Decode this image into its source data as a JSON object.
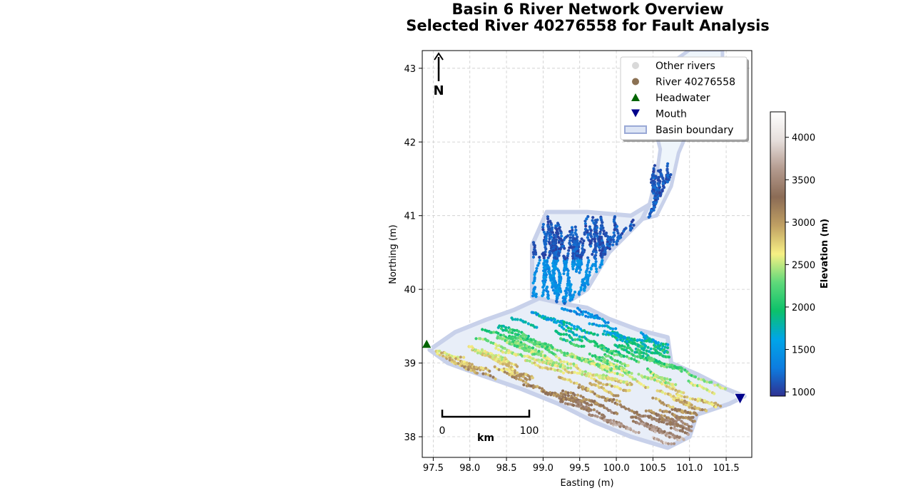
{
  "chart_data": {
    "type": "scatter",
    "title": "Basin 6 River Network Overview",
    "subtitle": "Selected River 40276558 for Fault Analysis",
    "xlabel": "Easting (m)",
    "ylabel": "Northing (m)",
    "xlim": [
      97.35,
      101.85
    ],
    "ylim": [
      37.72,
      43.24
    ],
    "x_ticks": [
      "97.5",
      "98.0",
      "98.5",
      "99.0",
      "99.5",
      "100.0",
      "100.5",
      "101.0",
      "101.5"
    ],
    "y_ticks": [
      "38",
      "39",
      "40",
      "41",
      "42",
      "43"
    ],
    "grid": true,
    "legend_placement": "top-right",
    "legend": [
      {
        "label": "Other rivers",
        "marker": "circle",
        "color": "#d9d9d9"
      },
      {
        "label": "River 40276558",
        "marker": "circle",
        "color": "#8b7153"
      },
      {
        "label": "Headwater",
        "marker": "triangle-up",
        "color": "#006400"
      },
      {
        "label": "Mouth",
        "marker": "triangle-down",
        "color": "#00008b"
      },
      {
        "label": "Basin boundary",
        "marker": "rectangle",
        "color": "#9aa9d6"
      }
    ],
    "headwater": {
      "x": 97.41,
      "y": 39.25
    },
    "mouth": {
      "x": 101.69,
      "y": 38.52
    },
    "basin_boundary": [
      [
        97.45,
        39.18
      ],
      [
        97.8,
        39.42
      ],
      [
        98.2,
        39.58
      ],
      [
        98.6,
        39.72
      ],
      [
        98.95,
        39.88
      ],
      [
        99.3,
        39.8
      ],
      [
        99.6,
        39.75
      ],
      [
        99.9,
        39.6
      ],
      [
        100.3,
        39.45
      ],
      [
        100.7,
        39.35
      ],
      [
        100.75,
        39.0
      ],
      [
        101.1,
        38.85
      ],
      [
        101.5,
        38.65
      ],
      [
        101.75,
        38.55
      ],
      [
        101.55,
        38.45
      ],
      [
        101.1,
        38.3
      ],
      [
        101.0,
        38.0
      ],
      [
        100.7,
        37.85
      ],
      [
        100.2,
        38.0
      ],
      [
        99.7,
        38.2
      ],
      [
        99.2,
        38.45
      ],
      [
        98.7,
        38.65
      ],
      [
        98.2,
        38.82
      ],
      [
        97.7,
        39.0
      ]
    ],
    "river_points_note_free": [],
    "colorbar": {
      "label": "Elevation (m)",
      "range": [
        950,
        4300
      ],
      "ticks": [
        "1000",
        "1500",
        "2000",
        "2500",
        "3000",
        "3500",
        "4000"
      ],
      "colormap": [
        "#2e3192",
        "#0d7de0",
        "#00a5e8",
        "#0cc16a",
        "#5fd97a",
        "#f7f084",
        "#c0a063",
        "#8b6b55",
        "#b49b8f",
        "#e6dfdc",
        "#ffffff"
      ]
    }
  },
  "scale_bar": {
    "start_label": "0",
    "end_label": "100",
    "unit_label": "km"
  },
  "north_arrow": {
    "label": "N"
  }
}
